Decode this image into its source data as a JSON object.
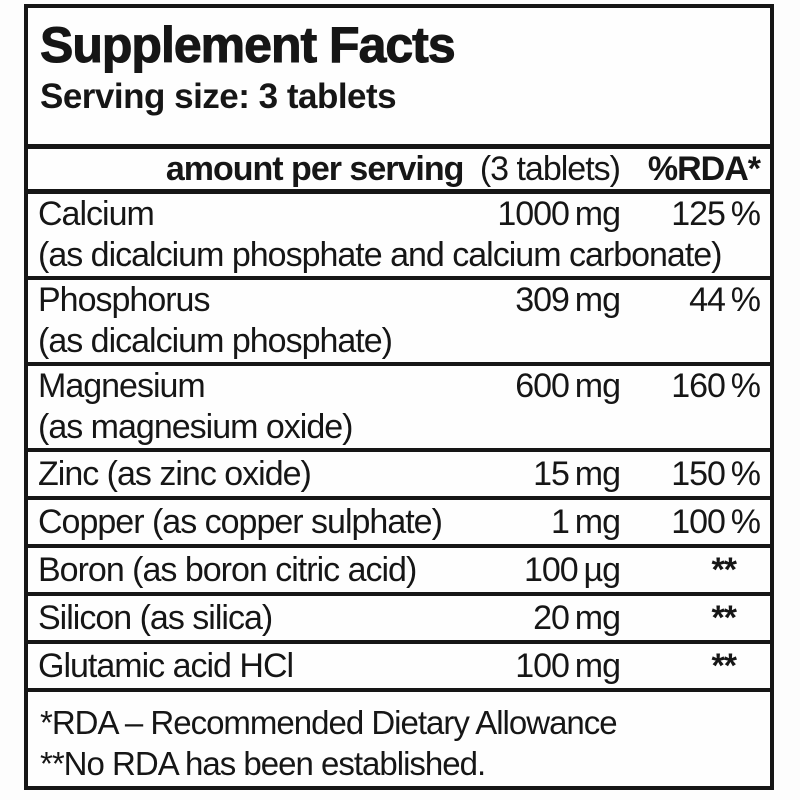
{
  "label": {
    "title": "Supplement Facts",
    "serving_size": "Serving size: 3 tablets",
    "header": {
      "amount_label": "amount per serving",
      "amount_label_suffix": "(3 tablets)",
      "rda_label": "%RDA*"
    },
    "rows": [
      {
        "name": "Calcium",
        "amount": "1000 mg",
        "rda": "125 %",
        "note": "(as dicalcium phosphate and calcium carbonate)"
      },
      {
        "name": "Phosphorus",
        "amount": "309 mg",
        "rda": "44 %",
        "note": "(as dicalcium phosphate)"
      },
      {
        "name": "Magnesium",
        "amount": "600 mg",
        "rda": "160 %",
        "note": "(as magnesium oxide)"
      },
      {
        "name": "Zinc (as zinc oxide)",
        "amount": "15 mg",
        "rda": "150 %"
      },
      {
        "name": "Copper (as copper sulphate)",
        "amount": "1 mg",
        "rda": "100 %"
      },
      {
        "name": "Boron (as boron citric acid)",
        "amount": "100 µg",
        "rda": "**"
      },
      {
        "name": "Silicon (as silica)",
        "amount": "20 mg",
        "rda": "**"
      },
      {
        "name": "Glutamic acid HCl",
        "amount": "100 mg",
        "rda": "**"
      }
    ],
    "footnotes": [
      "*RDA – Recommended Dietary Allowance",
      "**No RDA has been established."
    ],
    "colors": {
      "ink": "#161616",
      "paper": "#fefefe"
    }
  }
}
